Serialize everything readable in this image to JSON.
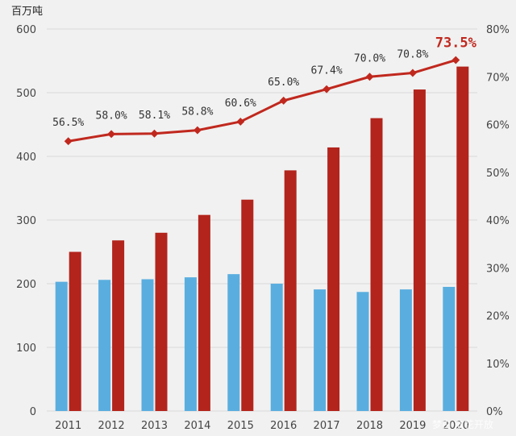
{
  "colors": {
    "background": "#f1f1f1",
    "gridline": "#d9d9d9",
    "bar_blue": "#5aaedf",
    "bar_red": "#b3241c",
    "line": "#c0281e",
    "highlight_label": "#c0281e"
  },
  "chart_data": {
    "type": "bar",
    "title": "",
    "y_unit_label": "百万吨",
    "categories": [
      "2011",
      "2012",
      "2013",
      "2014",
      "2015",
      "2016",
      "2017",
      "2018",
      "2019",
      "2020"
    ],
    "ylim": [
      0,
      600
    ],
    "yticks": [
      "0",
      "100",
      "200",
      "300",
      "400",
      "500",
      "600"
    ],
    "y2lim": [
      0,
      80
    ],
    "y2ticks": [
      "0%",
      "10%",
      "20%",
      "30%",
      "40%",
      "50%",
      "60%",
      "70%",
      "80%"
    ],
    "series": [
      {
        "type": "bar",
        "axis": "left",
        "color": "#5aaedf",
        "values": [
          203,
          206,
          207,
          210,
          215,
          200,
          191,
          187,
          191,
          195
        ]
      },
      {
        "type": "bar",
        "axis": "left",
        "color": "#b3241c",
        "values": [
          250,
          268,
          280,
          308,
          332,
          378,
          414,
          460,
          505,
          541
        ]
      },
      {
        "type": "line",
        "axis": "right",
        "color": "#c0281e",
        "values": [
          56.5,
          58.0,
          58.1,
          58.8,
          60.6,
          65.0,
          67.4,
          70.0,
          70.8,
          73.5
        ],
        "labels": [
          "56.5%",
          "58.0%",
          "58.1%",
          "58.8%",
          "60.6%",
          "65.0%",
          "67.4%",
          "70.0%",
          "70.8%",
          "73.5%"
        ],
        "highlight_index": 9
      }
    ],
    "grid": true,
    "legend": "none"
  },
  "watermark": "梦白·放花开放"
}
